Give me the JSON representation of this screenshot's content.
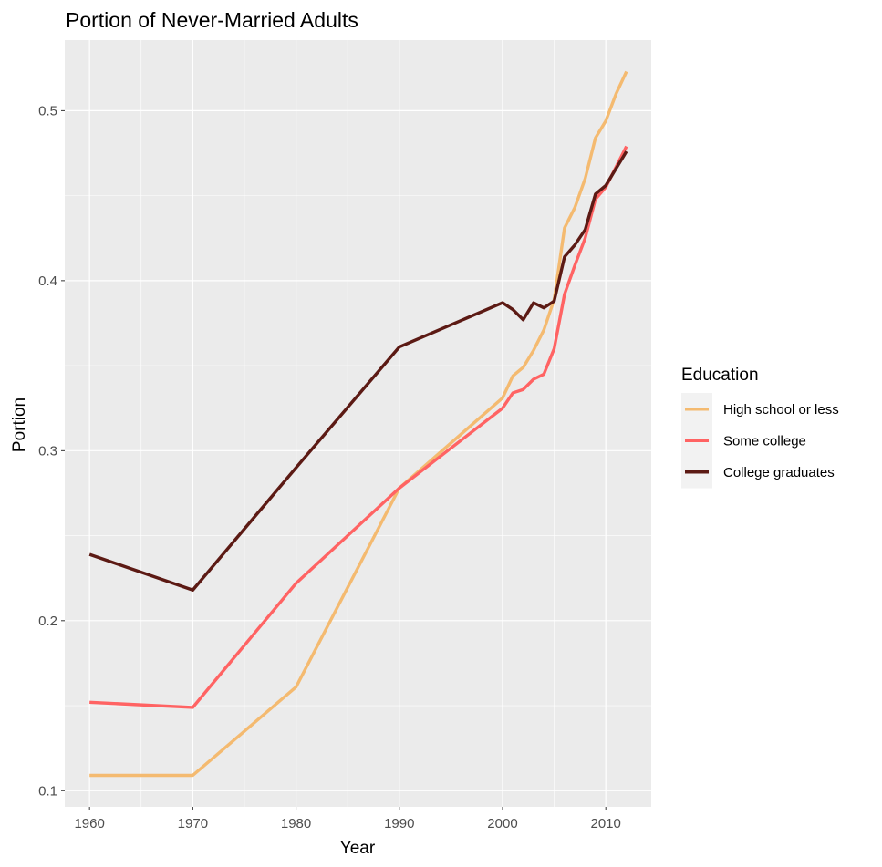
{
  "chart_data": {
    "type": "line",
    "title": "Portion of Never-Married Adults",
    "xlabel": "Year",
    "ylabel": "Portion",
    "xlim": [
      1957.6,
      2014.4
    ],
    "ylim": [
      0.0905,
      0.5415
    ],
    "x_ticks": [
      1960,
      1970,
      1980,
      1990,
      2000,
      2010
    ],
    "y_ticks": [
      0.1,
      0.2,
      0.3,
      0.4,
      0.5
    ],
    "x_tick_labels": [
      "1960",
      "1970",
      "1980",
      "1990",
      "2000",
      "2010"
    ],
    "y_tick_labels": [
      "0.1",
      "0.2",
      "0.3",
      "0.4",
      "0.5"
    ],
    "grid": true,
    "legend_title": "Education",
    "legend_position": "right",
    "series": [
      {
        "name": "High school or less",
        "color": "#F4BA70",
        "points": [
          [
            1960,
            0.109
          ],
          [
            1970,
            0.109
          ],
          [
            1980,
            0.161
          ],
          [
            1990,
            0.278
          ],
          [
            2000,
            0.331
          ],
          [
            2001,
            0.344
          ],
          [
            2002,
            0.349
          ],
          [
            2003,
            0.359
          ],
          [
            2004,
            0.371
          ],
          [
            2005,
            0.389
          ],
          [
            2006,
            0.431
          ],
          [
            2007,
            0.443
          ],
          [
            2008,
            0.46
          ],
          [
            2009,
            0.484
          ],
          [
            2010,
            0.494
          ],
          [
            2011,
            0.51
          ],
          [
            2012,
            0.523
          ]
        ]
      },
      {
        "name": "Some college",
        "color": "#FF6363",
        "points": [
          [
            1960,
            0.152
          ],
          [
            1970,
            0.149
          ],
          [
            1980,
            0.222
          ],
          [
            1990,
            0.278
          ],
          [
            2000,
            0.325
          ],
          [
            2001,
            0.334
          ],
          [
            2002,
            0.336
          ],
          [
            2003,
            0.342
          ],
          [
            2004,
            0.345
          ],
          [
            2005,
            0.36
          ],
          [
            2006,
            0.392
          ],
          [
            2007,
            0.409
          ],
          [
            2008,
            0.425
          ],
          [
            2009,
            0.448
          ],
          [
            2010,
            0.455
          ],
          [
            2011,
            0.467
          ],
          [
            2012,
            0.479
          ]
        ]
      },
      {
        "name": "College graduates",
        "color": "#5C1A14",
        "points": [
          [
            1960,
            0.239
          ],
          [
            1970,
            0.218
          ],
          [
            1980,
            0.29
          ],
          [
            1990,
            0.361
          ],
          [
            2000,
            0.387
          ],
          [
            2001,
            0.383
          ],
          [
            2002,
            0.377
          ],
          [
            2003,
            0.387
          ],
          [
            2004,
            0.384
          ],
          [
            2005,
            0.388
          ],
          [
            2006,
            0.414
          ],
          [
            2007,
            0.421
          ],
          [
            2008,
            0.43
          ],
          [
            2009,
            0.451
          ],
          [
            2010,
            0.456
          ],
          [
            2011,
            0.466
          ],
          [
            2012,
            0.476
          ]
        ]
      }
    ]
  }
}
